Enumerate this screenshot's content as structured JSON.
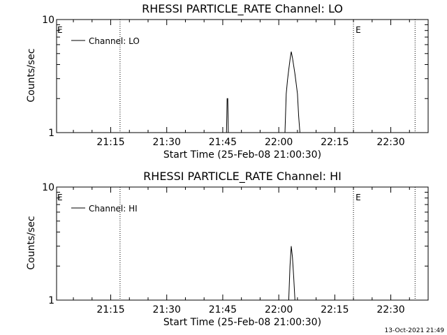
{
  "chart_data": [
    {
      "type": "line",
      "title": "RHESSI PARTICLE_RATE Channel: LO",
      "xlabel": "Start Time (25-Feb-08 21:00:30)",
      "ylabel": "Counts/sec",
      "y_scale": "log",
      "ylim": [
        1,
        10
      ],
      "y_tick_labels": [
        "1",
        "10"
      ],
      "xlim": [
        "21:00:30",
        "22:40:00"
      ],
      "x_tick_labels": [
        "21:15",
        "21:30",
        "21:45",
        "22:00",
        "22:15",
        "22:30"
      ],
      "grid": false,
      "legend_position": "top-left",
      "series": [
        {
          "name": "Channel: LO",
          "x": [
            "21:46:00",
            "21:46:10",
            "21:46:20",
            "21:46:30",
            "22:01:40",
            "22:02:00",
            "22:02:20",
            "22:02:40",
            "22:03:00",
            "22:03:20",
            "22:03:40",
            "22:04:00",
            "22:04:20",
            "22:04:40",
            "22:05:00",
            "22:05:20",
            "22:05:40"
          ],
          "values": [
            1.0,
            2.0,
            2.0,
            1.0,
            1.0,
            2.2,
            2.9,
            3.6,
            4.4,
            5.2,
            4.6,
            3.9,
            3.3,
            2.7,
            2.2,
            1.4,
            1.0
          ]
        }
      ],
      "vertical_markers": [
        {
          "x": "21:17:30",
          "label": ""
        },
        {
          "x": "22:20:00",
          "label": "E"
        },
        {
          "x": "22:36:30",
          "label": ""
        }
      ],
      "edge_label": "E"
    },
    {
      "type": "line",
      "title": "RHESSI PARTICLE_RATE Channel: HI",
      "xlabel": "Start Time (25-Feb-08 21:00:30)",
      "ylabel": "Counts/sec",
      "y_scale": "log",
      "ylim": [
        1,
        10
      ],
      "y_tick_labels": [
        "1",
        "10"
      ],
      "xlim": [
        "21:00:30",
        "22:40:00"
      ],
      "x_tick_labels": [
        "21:15",
        "21:30",
        "21:45",
        "22:00",
        "22:15",
        "22:30"
      ],
      "grid": false,
      "legend_position": "top-left",
      "series": [
        {
          "name": "Channel: HI",
          "x": [
            "22:02:40",
            "22:03:00",
            "22:03:20",
            "22:03:40",
            "22:04:00",
            "22:04:20"
          ],
          "values": [
            1.0,
            2.0,
            3.0,
            2.4,
            1.6,
            1.0
          ]
        }
      ],
      "vertical_markers": [
        {
          "x": "21:17:30",
          "label": ""
        },
        {
          "x": "22:20:00",
          "label": "E"
        },
        {
          "x": "22:36:30",
          "label": ""
        }
      ],
      "edge_label": "E"
    }
  ],
  "footer": {
    "timestamp": "13-Oct-2021 21:49"
  }
}
